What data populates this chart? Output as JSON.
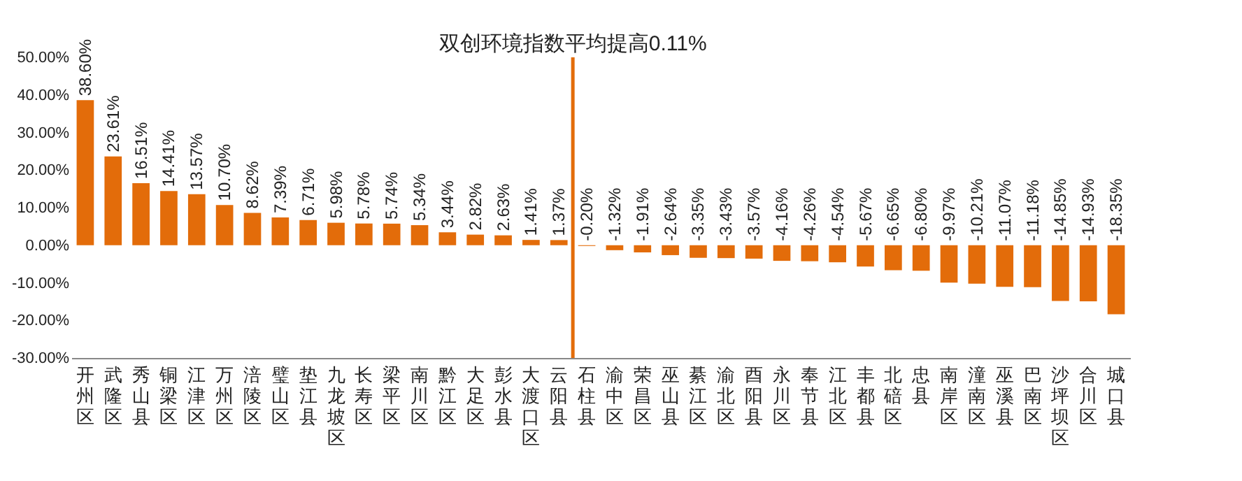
{
  "chart_data": {
    "type": "bar",
    "categories": [
      "开州区",
      "武隆区",
      "秀山县",
      "铜梁区",
      "江津区",
      "万州区",
      "涪陵区",
      "璧山区",
      "垫江县",
      "九龙坡区",
      "长寿区",
      "梁平区",
      "南川区",
      "黔江区",
      "大足区",
      "彭水县",
      "大渡口区",
      "云阳县",
      "石柱县",
      "渝中区",
      "荣昌区",
      "巫山县",
      "綦江区",
      "渝北区",
      "酉阳县",
      "永川区",
      "奉节县",
      "江北区",
      "丰都县",
      "北碚区",
      "忠县",
      "南岸区",
      "潼南区",
      "巫溪县",
      "巴南区",
      "沙坪坝区",
      "合川区",
      "城口县"
    ],
    "values": [
      38.6,
      23.61,
      16.51,
      14.41,
      13.57,
      10.7,
      8.62,
      7.39,
      6.71,
      5.98,
      5.78,
      5.74,
      5.34,
      3.44,
      2.82,
      2.63,
      1.41,
      1.37,
      -0.2,
      -1.32,
      -1.91,
      -2.64,
      -3.35,
      -3.43,
      -3.57,
      -4.16,
      -4.26,
      -4.54,
      -5.67,
      -6.65,
      -6.8,
      -9.97,
      -10.21,
      -11.07,
      -11.18,
      -14.85,
      -14.93,
      -18.35
    ],
    "value_labels": [
      "38.60%",
      "23.61%",
      "16.51%",
      "14.41%",
      "13.57%",
      "10.70%",
      "8.62%",
      "7.39%",
      "6.71%",
      "5.98%",
      "5.78%",
      "5.74%",
      "5.34%",
      "3.44%",
      "2.82%",
      "2.63%",
      "1.41%",
      "1.37%",
      "-0.20%",
      "-1.32%",
      "-1.91%",
      "-2.64%",
      "-3.35%",
      "-3.43%",
      "-3.57%",
      "-4.16%",
      "-4.26%",
      "-4.54%",
      "-5.67%",
      "-6.65%",
      "-6.80%",
      "-9.97%",
      "-10.21%",
      "-11.07%",
      "-11.18%",
      "-14.85%",
      "-14.93%",
      "-18.35%"
    ],
    "color": "#e36c0a",
    "ylim": [
      -30,
      50
    ],
    "yticks": [
      {
        "value": -30,
        "label": "-30.00%"
      },
      {
        "value": -20,
        "label": "-20.00%"
      },
      {
        "value": -10,
        "label": "-10.00%"
      },
      {
        "value": 0,
        "label": "0.00%"
      },
      {
        "value": 10,
        "label": "10.00%"
      },
      {
        "value": 20,
        "label": "20.00%"
      },
      {
        "value": 30,
        "label": "30.00%"
      },
      {
        "value": 40,
        "label": "40.00%"
      },
      {
        "value": 50,
        "label": "50.00%"
      }
    ],
    "grid": false,
    "ref_lines": [
      {
        "axis": "x",
        "value": "石柱县",
        "label": "双创环境指数平均提高0.11%",
        "color": "#e36c0a"
      }
    ]
  }
}
